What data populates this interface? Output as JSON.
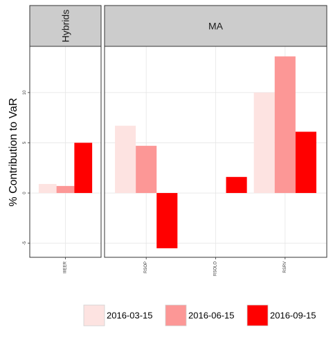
{
  "chart_data": {
    "type": "bar",
    "xlabel": "",
    "ylabel": "% Contribution to VaR",
    "ylim": [
      -6.4,
      14.6
    ],
    "yticks": [
      -5,
      0,
      5,
      10
    ],
    "ytick_labels": [
      "-5",
      "0",
      "5",
      "10"
    ],
    "grid": true,
    "legend_position": "bottom",
    "panels": [
      {
        "name": "Hybrids",
        "categories": [
          "IIIEER"
        ]
      },
      {
        "name": "MA",
        "categories": [
          "RSOP",
          "RSOLO",
          "RSRV"
        ]
      }
    ],
    "series": [
      {
        "name": "2016-03-15",
        "color": "#FDE3E1",
        "values": {
          "IIIEER": 0.9,
          "RSOP": 6.7,
          "RSOLO": 0.0,
          "RSRV": 10.0
        }
      },
      {
        "name": "2016-06-15",
        "color": "#FC9796",
        "values": {
          "IIIEER": 0.7,
          "RSOP": 4.7,
          "RSOLO": 0.0,
          "RSRV": 13.6
        }
      },
      {
        "name": "2016-09-15",
        "color": "#FF0000",
        "values": {
          "IIIEER": 5.0,
          "RSOP": -5.5,
          "RSOLO": 1.6,
          "RSRV": 6.1
        }
      }
    ]
  }
}
